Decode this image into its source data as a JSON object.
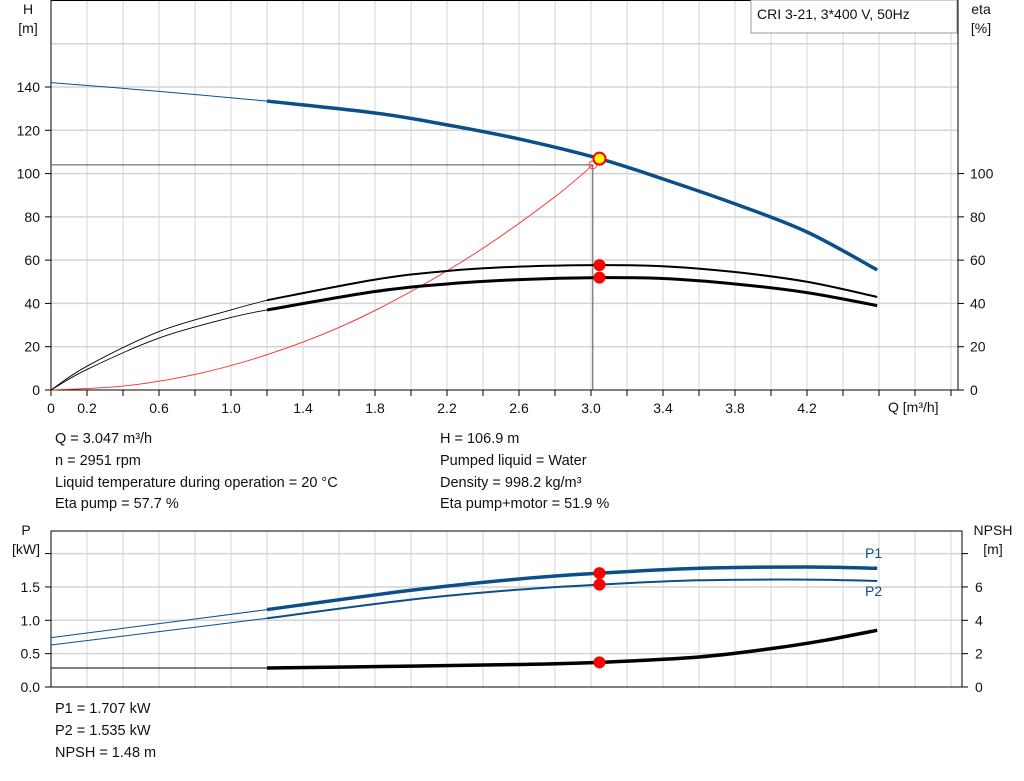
{
  "legend_box": "CRI 3-21, 3*400 V, 50Hz",
  "colors": {
    "head": "#0b4f8a",
    "power": "#0b4f8a",
    "efficiency": "#000000",
    "system_curve": "#ff2a2a",
    "duty_point": "#ff0000",
    "operating_point_fill": "#ffff00",
    "grid": "#d4d4d4"
  },
  "info": {
    "q": "Q = 3.047 m³/h",
    "n": "n = 2951 rpm",
    "temp": "Liquid temperature during operation = 20 °C",
    "eta_pump": "Eta pump = 57.7 %",
    "h": "H = 106.9 m",
    "liquid": "Pumped liquid = Water",
    "density": "Density = 998.2 kg/m³",
    "eta_total": "Eta pump+motor = 51.9 %",
    "p1": "P1 = 1.707 kW",
    "p2": "P2 = 1.535 kW",
    "npsh": "NPSH = 1.48 m"
  },
  "chart_data": [
    {
      "type": "line",
      "xlabel": "Q [m³/h]",
      "ylabel_left": [
        "H",
        "[m]"
      ],
      "ylabel_right": [
        "eta",
        "[%]"
      ],
      "x_ticks": [
        "0",
        "0.2",
        "0.6",
        "1.0",
        "1.4",
        "1.8",
        "2.2",
        "2.6",
        "3.0",
        "3.4",
        "3.8",
        "4.2"
      ],
      "x_tick_values": [
        0,
        0.2,
        0.6,
        1.0,
        1.4,
        1.8,
        2.2,
        2.6,
        3.0,
        3.4,
        3.8,
        4.2
      ],
      "y_ticks_left": [
        "0",
        "20",
        "40",
        "60",
        "80",
        "100",
        "120",
        "140"
      ],
      "y_ticks_right": [
        "0",
        "20",
        "40",
        "60",
        "80",
        "100"
      ],
      "xlim": [
        0,
        5.04
      ],
      "ylim": [
        0,
        180
      ],
      "grid": true,
      "series": [
        {
          "key": "head",
          "x": [
            0,
            0.6,
            1.2,
            1.8,
            2.2,
            2.6,
            3.047,
            3.4,
            3.8,
            4.2,
            4.59
          ],
          "y": [
            142,
            138,
            133.5,
            128,
            122.5,
            116,
            106.9,
            97.5,
            86,
            73,
            55.5
          ]
        },
        {
          "key": "eta_pump",
          "x": [
            0,
            0.2,
            0.6,
            1.0,
            1.2,
            1.8,
            2.2,
            2.6,
            3.047,
            3.4,
            3.8,
            4.2,
            4.59
          ],
          "y": [
            0,
            11,
            27,
            37,
            41.5,
            51,
            55,
            57,
            57.7,
            57.2,
            54.5,
            50,
            43
          ]
        },
        {
          "key": "eta_total",
          "x": [
            0,
            0.2,
            0.6,
            1.0,
            1.2,
            1.8,
            2.2,
            2.6,
            3.047,
            3.4,
            3.8,
            4.2,
            4.59
          ],
          "y": [
            0,
            9.5,
            24,
            33.5,
            37,
            45.5,
            49,
            51,
            51.9,
            51.5,
            49,
            45,
            39
          ]
        },
        {
          "key": "system",
          "x": [
            0,
            0.4,
            0.8,
            1.2,
            1.6,
            2.0,
            2.4,
            2.8,
            3.01
          ],
          "y": [
            0,
            1.8,
            7.2,
            16.3,
            28.9,
            45.5,
            65.5,
            89.3,
            104
          ]
        }
      ],
      "operating_point": {
        "q": 3.047,
        "h": 106.9,
        "eta_pump": 57.7,
        "eta_total": 51.9
      },
      "system_point": {
        "q": 3.01,
        "h": 104
      }
    },
    {
      "type": "line",
      "ylabel_left": [
        "P",
        "[kW]"
      ],
      "ylabel_right": [
        "NPSH",
        "[m]"
      ],
      "y_ticks_left": [
        "0.0",
        "0.5",
        "1.0",
        "1.5"
      ],
      "y_ticks_right": [
        "0",
        "2",
        "4",
        "6"
      ],
      "xlim": [
        0,
        5.04
      ],
      "ylim_left": [
        0,
        2.35
      ],
      "ylim_right": [
        0,
        9.4
      ],
      "grid": true,
      "series": [
        {
          "key": "p1",
          "name": "P1",
          "x": [
            0,
            0.6,
            1.2,
            2.0,
            2.6,
            3.047,
            3.6,
            4.2,
            4.59
          ],
          "y": [
            0.74,
            0.95,
            1.16,
            1.45,
            1.62,
            1.707,
            1.78,
            1.8,
            1.78
          ]
        },
        {
          "key": "p2",
          "name": "P2",
          "x": [
            0,
            0.6,
            1.2,
            2.0,
            2.6,
            3.047,
            3.6,
            4.2,
            4.59
          ],
          "y": [
            0.63,
            0.83,
            1.03,
            1.31,
            1.46,
            1.535,
            1.6,
            1.61,
            1.59
          ]
        },
        {
          "key": "npsh",
          "x": [
            0,
            1.2,
            2.0,
            2.6,
            3.047,
            3.6,
            4.0,
            4.3,
            4.59
          ],
          "y": [
            1.14,
            1.14,
            1.25,
            1.35,
            1.48,
            1.8,
            2.3,
            2.8,
            3.4
          ]
        }
      ],
      "operating_point": {
        "q": 3.047,
        "p1": 1.707,
        "p2": 1.535,
        "npsh": 1.48
      }
    }
  ]
}
